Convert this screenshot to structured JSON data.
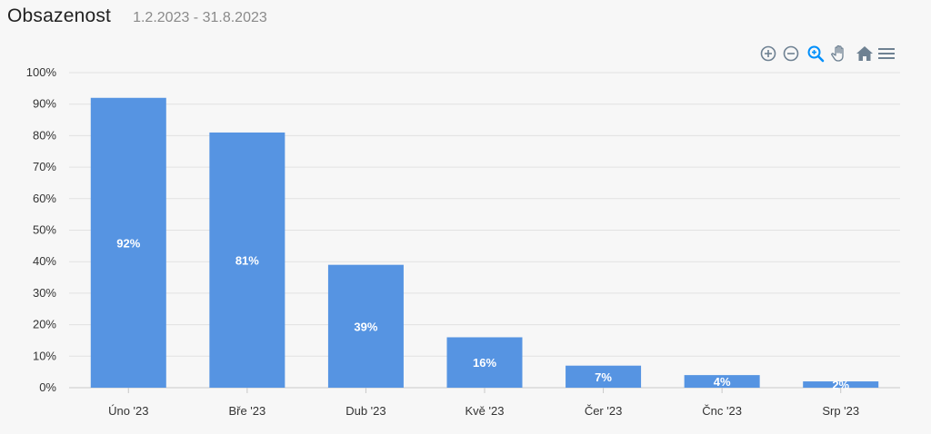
{
  "header": {
    "title": "Obsazenost",
    "date_range": "1.2.2023 - 31.8.2023"
  },
  "toolbar": {
    "icons": [
      "zoom-in-icon",
      "zoom-out-icon",
      "zoom-selection-icon",
      "pan-hand-icon",
      "reset-home-icon",
      "menu-icon"
    ],
    "active": "zoom-selection-icon"
  },
  "colors": {
    "bar": "#5694e2",
    "grid": "#e2e2e2",
    "axis": "#c8c8c8",
    "toolbar_icon": "#6e8192",
    "toolbar_active": "#008ffb"
  },
  "chart_data": {
    "type": "bar",
    "categories": [
      "Úno '23",
      "Bře '23",
      "Dub '23",
      "Kvě '23",
      "Čer '23",
      "Čnc '23",
      "Srp '23"
    ],
    "values": [
      92,
      81,
      39,
      16,
      7,
      4,
      2
    ],
    "data_labels": [
      "92%",
      "81%",
      "39%",
      "16%",
      "7%",
      "4%",
      "2%"
    ],
    "ylim": [
      0,
      100
    ],
    "yticks": [
      0,
      10,
      20,
      30,
      40,
      50,
      60,
      70,
      80,
      90,
      100
    ],
    "ytick_labels": [
      "0%",
      "10%",
      "20%",
      "30%",
      "40%",
      "50%",
      "60%",
      "70%",
      "80%",
      "90%",
      "100%"
    ],
    "grid": true,
    "legend": "none"
  }
}
